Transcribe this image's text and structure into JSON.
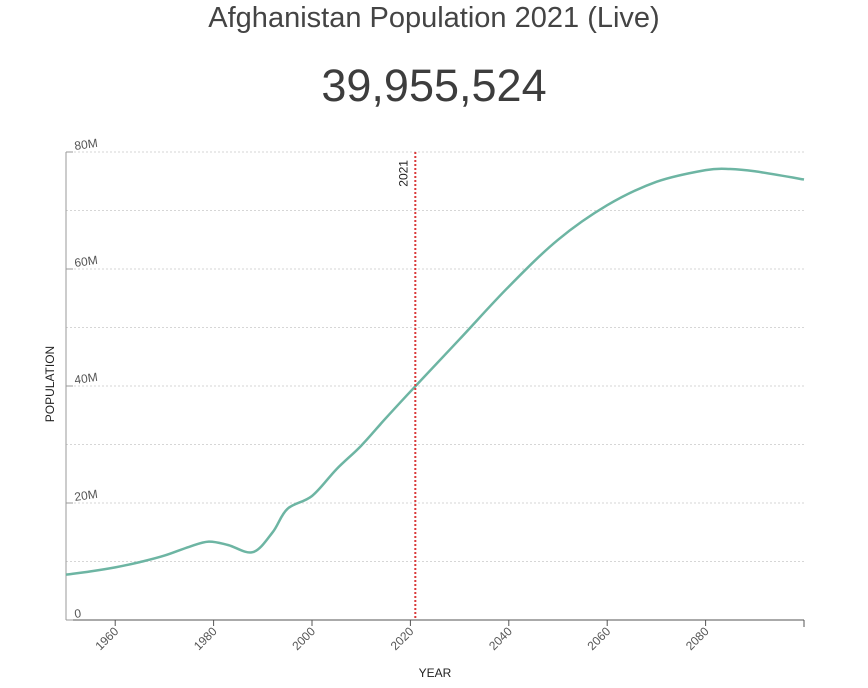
{
  "header": {
    "title": "Afghanistan Population 2021 (Live)",
    "live_count": "39,955,524"
  },
  "chart_data": {
    "type": "line",
    "title": "Afghanistan Population 2021 (Live)",
    "xlabel": "YEAR",
    "ylabel": "POPULATION",
    "xlim": [
      1950,
      2100
    ],
    "ylim": [
      0,
      80000000
    ],
    "x_ticks": [
      1960,
      1980,
      2000,
      2020,
      2040,
      2060,
      2080
    ],
    "y_ticks": [
      {
        "value": 0,
        "label": "0"
      },
      {
        "value": 20000000,
        "label": "20M"
      },
      {
        "value": 40000000,
        "label": "40M"
      },
      {
        "value": 60000000,
        "label": "60M"
      },
      {
        "value": 80000000,
        "label": "80M"
      }
    ],
    "grid": true,
    "marker": {
      "x": 2021,
      "label": "2021",
      "color": "#d93a3a"
    },
    "series": [
      {
        "name": "Population",
        "color": "#6db5a3",
        "x": [
          1950,
          1955,
          1960,
          1965,
          1970,
          1975,
          1979,
          1983,
          1988,
          1992,
          1995,
          2000,
          2005,
          2010,
          2015,
          2021,
          2030,
          2040,
          2050,
          2060,
          2070,
          2080,
          2085,
          2090,
          2100
        ],
        "y": [
          7750000,
          8300000,
          9000000,
          9900000,
          11000000,
          12500000,
          13400000,
          12800000,
          11600000,
          15000000,
          19000000,
          21200000,
          25800000,
          29800000,
          34500000,
          39955524,
          48000000,
          57000000,
          65000000,
          70900000,
          74900000,
          76900000,
          77100000,
          76700000,
          75300000
        ]
      }
    ]
  }
}
